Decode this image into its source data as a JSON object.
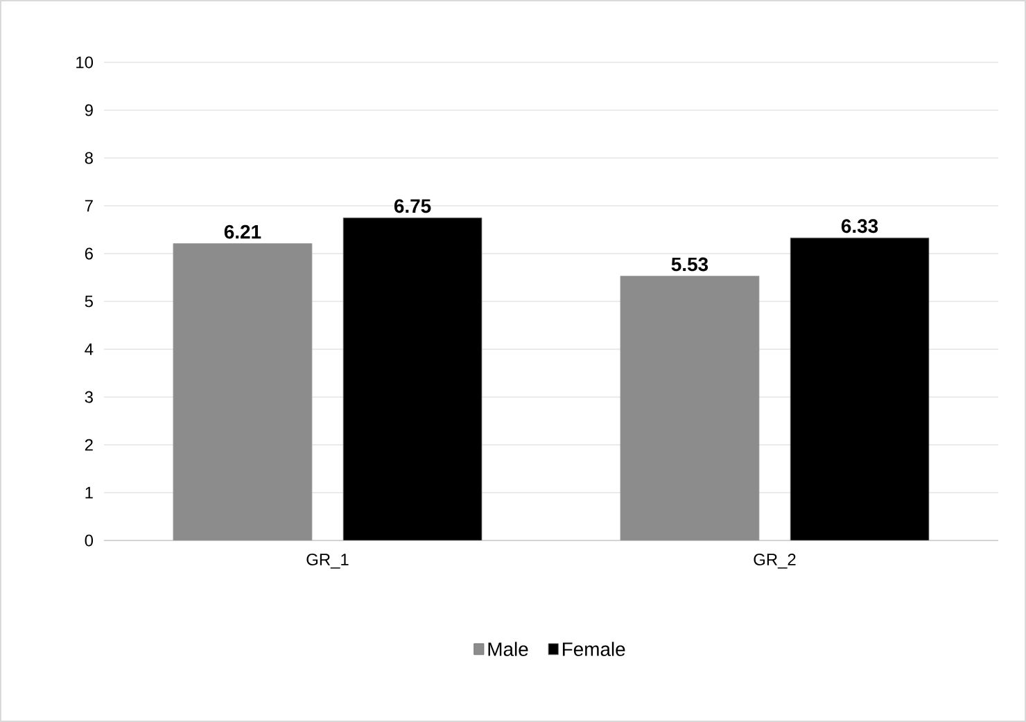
{
  "chart_data": {
    "type": "bar",
    "categories": [
      "GR_1",
      "GR_2"
    ],
    "series": [
      {
        "name": "Male",
        "color": "#8c8c8c",
        "values": [
          6.21,
          5.53
        ]
      },
      {
        "name": "Female",
        "color": "#000000",
        "values": [
          6.75,
          6.33
        ]
      }
    ],
    "ylim": [
      0,
      10
    ],
    "yticks": [
      0,
      1,
      2,
      3,
      4,
      5,
      6,
      7,
      8,
      9,
      10
    ],
    "grid": "y",
    "legend": "bottom",
    "data_labels": true
  }
}
